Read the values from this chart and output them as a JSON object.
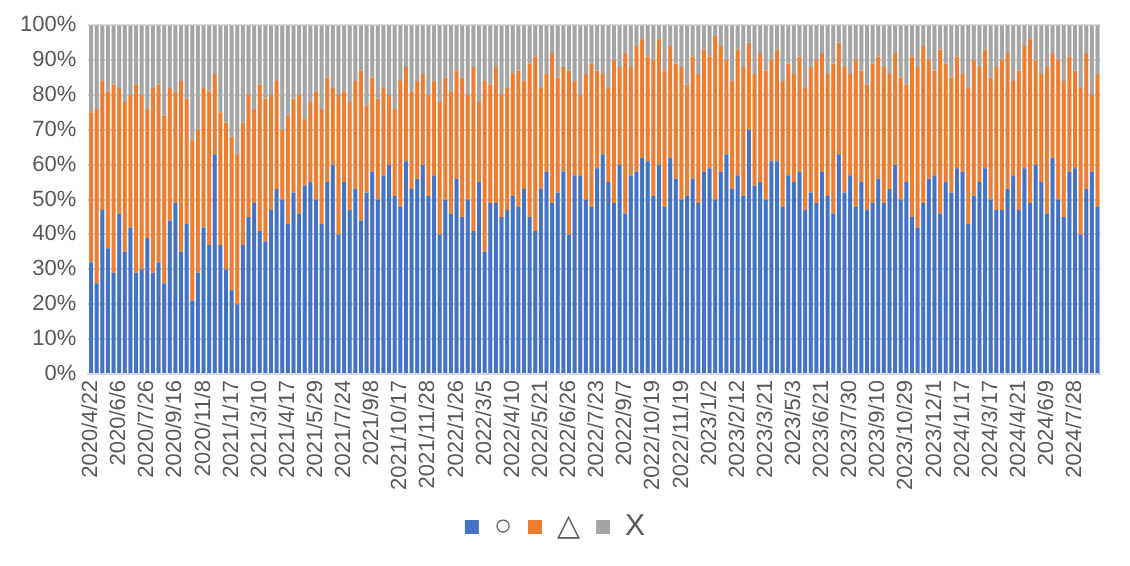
{
  "chart_data": {
    "type": "bar",
    "stacked": true,
    "categories": [
      "2020/4/22",
      null,
      null,
      null,
      null,
      "2020/6/6",
      null,
      null,
      null,
      null,
      "2020/7/26",
      null,
      null,
      null,
      null,
      "2020/9/16",
      null,
      null,
      null,
      null,
      "2020/11/8",
      null,
      null,
      null,
      null,
      "2021/1/17",
      null,
      null,
      null,
      null,
      "2021/3/10",
      null,
      null,
      null,
      null,
      "2021/4/17",
      null,
      null,
      null,
      null,
      "2021/5/29",
      null,
      null,
      null,
      null,
      "2021/7/24",
      null,
      null,
      null,
      null,
      "2021/9/8",
      null,
      null,
      null,
      null,
      "2021/10/17",
      null,
      null,
      null,
      null,
      "2021/11/28",
      null,
      null,
      null,
      null,
      "2022/1/26",
      null,
      null,
      null,
      null,
      "2022/3/5",
      null,
      null,
      null,
      null,
      "2022/4/10",
      null,
      null,
      null,
      null,
      "2022/5/21",
      null,
      null,
      null,
      null,
      "2022/6/26",
      null,
      null,
      null,
      null,
      "2022/7/23",
      null,
      null,
      null,
      null,
      "2022/9/7",
      null,
      null,
      null,
      null,
      "2022/10/19",
      null,
      null,
      null,
      null,
      "2022/11/19",
      null,
      null,
      null,
      null,
      "2023/1/2",
      null,
      null,
      null,
      null,
      "2023/2/12",
      null,
      null,
      null,
      null,
      "2023/3/21",
      null,
      null,
      null,
      null,
      "2023/5/3",
      null,
      null,
      null,
      null,
      "2023/6/21",
      null,
      null,
      null,
      null,
      "2023/7/30",
      null,
      null,
      null,
      null,
      "2023/9/10",
      null,
      null,
      null,
      null,
      "2023/10/29",
      null,
      null,
      null,
      null,
      "2023/12/1",
      null,
      null,
      null,
      null,
      "2024/1/17",
      null,
      null,
      null,
      null,
      "2024/3/17",
      null,
      null,
      null,
      null,
      "2024/4/21",
      null,
      null,
      null,
      null,
      "2024/6/9",
      null,
      null,
      null,
      null,
      "2024/7/28",
      null,
      null,
      null,
      null
    ],
    "series": [
      {
        "name": "○",
        "color": "#4472c4",
        "values": [
          32,
          26,
          47,
          36,
          29,
          46,
          35,
          42,
          29,
          30,
          39,
          29,
          32,
          26,
          44,
          49,
          35,
          43,
          21,
          29,
          42,
          37,
          63,
          37,
          30,
          24,
          20,
          37,
          45,
          49,
          41,
          38,
          47,
          53,
          50,
          43,
          52,
          46,
          54,
          55,
          50,
          43,
          55,
          60,
          40,
          55,
          47,
          53,
          44,
          52,
          58,
          50,
          57,
          60,
          51,
          48,
          61,
          53,
          56,
          60,
          51,
          57,
          40,
          50,
          46,
          56,
          45,
          50,
          41,
          55,
          35,
          49,
          49,
          45,
          47,
          51,
          48,
          53,
          45,
          41,
          53,
          58,
          49,
          52,
          58,
          40,
          57,
          57,
          50,
          48,
          59,
          63,
          55,
          49,
          60,
          46,
          57,
          58,
          62,
          61,
          51,
          60,
          48,
          62,
          56,
          50,
          51,
          56,
          49,
          58,
          59,
          50,
          58,
          63,
          53,
          57,
          51,
          70,
          54,
          55,
          50,
          61,
          61,
          48,
          57,
          55,
          58,
          47,
          52,
          49,
          58,
          51,
          46,
          63,
          52,
          57,
          48,
          55,
          47,
          49,
          56,
          49,
          53,
          60,
          50,
          55,
          45,
          42,
          49,
          56,
          57,
          46,
          55,
          52,
          59,
          58,
          43,
          51,
          55,
          59,
          50,
          47,
          47,
          53,
          57,
          47,
          59,
          49,
          60,
          55,
          46,
          62,
          50,
          45,
          58,
          59,
          40,
          53,
          58,
          48
        ]
      },
      {
        "name": "△",
        "color": "#ed7d31",
        "values": [
          43,
          50,
          37,
          45,
          54,
          36,
          43,
          38,
          54,
          50,
          37,
          53,
          51,
          48,
          38,
          32,
          49,
          36,
          46,
          41,
          40,
          44,
          23,
          38,
          42,
          44,
          43,
          35,
          35,
          27,
          42,
          41,
          33,
          31,
          20,
          31,
          27,
          34,
          19,
          23,
          31,
          33,
          30,
          22,
          40,
          26,
          31,
          31,
          43,
          25,
          27,
          29,
          25,
          20,
          25,
          36,
          27,
          28,
          28,
          26,
          29,
          27,
          38,
          35,
          35,
          31,
          40,
          30,
          47,
          23,
          49,
          34,
          39,
          35,
          35,
          35,
          39,
          31,
          44,
          50,
          29,
          28,
          43,
          33,
          30,
          47,
          27,
          23,
          36,
          41,
          28,
          23,
          27,
          41,
          28,
          46,
          31,
          36,
          34,
          30,
          39,
          36,
          39,
          32,
          33,
          38,
          32,
          35,
          37,
          35,
          32,
          47,
          36,
          27,
          31,
          36,
          37,
          25,
          32,
          37,
          37,
          29,
          32,
          36,
          32,
          31,
          33,
          35,
          36,
          41,
          34,
          35,
          43,
          32,
          36,
          29,
          42,
          32,
          36,
          40,
          35,
          39,
          33,
          32,
          35,
          28,
          46,
          46,
          45,
          34,
          30,
          47,
          34,
          33,
          32,
          28,
          39,
          39,
          33,
          34,
          35,
          41,
          43,
          39,
          27,
          40,
          35,
          47,
          30,
          31,
          42,
          30,
          40,
          39,
          33,
          28,
          42,
          39,
          22,
          38
        ]
      },
      {
        "name": "X",
        "color": "#a5a5a5",
        "values": [
          25,
          24,
          16,
          19,
          17,
          18,
          22,
          20,
          17,
          20,
          24,
          18,
          17,
          26,
          18,
          19,
          16,
          21,
          33,
          30,
          18,
          19,
          14,
          25,
          28,
          32,
          37,
          28,
          20,
          24,
          17,
          21,
          20,
          16,
          30,
          26,
          21,
          20,
          27,
          22,
          19,
          24,
          15,
          18,
          20,
          19,
          22,
          16,
          13,
          23,
          15,
          21,
          18,
          20,
          24,
          16,
          12,
          19,
          16,
          14,
          20,
          16,
          22,
          15,
          19,
          13,
          15,
          20,
          12,
          22,
          16,
          17,
          12,
          20,
          18,
          14,
          13,
          16,
          11,
          9,
          18,
          14,
          8,
          15,
          12,
          13,
          16,
          20,
          14,
          11,
          13,
          14,
          18,
          10,
          12,
          8,
          12,
          6,
          4,
          9,
          10,
          4,
          13,
          6,
          11,
          12,
          17,
          9,
          14,
          7,
          9,
          3,
          6,
          10,
          16,
          7,
          12,
          5,
          14,
          8,
          13,
          10,
          7,
          16,
          11,
          14,
          9,
          18,
          12,
          10,
          8,
          14,
          11,
          5,
          12,
          14,
          10,
          13,
          17,
          11,
          9,
          12,
          14,
          8,
          15,
          17,
          9,
          12,
          6,
          10,
          13,
          7,
          11,
          15,
          9,
          14,
          18,
          10,
          12,
          7,
          15,
          12,
          10,
          8,
          16,
          13,
          6,
          4,
          10,
          14,
          12,
          8,
          10,
          16,
          9,
          13,
          18,
          8,
          20,
          14
        ]
      }
    ],
    "ylim": [
      0,
      100
    ],
    "yticks": [
      {
        "value": 0,
        "label": "0%"
      },
      {
        "value": 10,
        "label": "10%"
      },
      {
        "value": 20,
        "label": "20%"
      },
      {
        "value": 30,
        "label": "30%"
      },
      {
        "value": 40,
        "label": "40%"
      },
      {
        "value": 50,
        "label": "50%"
      },
      {
        "value": 60,
        "label": "60%"
      },
      {
        "value": 70,
        "label": "70%"
      },
      {
        "value": 80,
        "label": "80%"
      },
      {
        "value": 90,
        "label": "90%"
      },
      {
        "value": 100,
        "label": "100%"
      }
    ],
    "grid": "y",
    "legend": "bottom"
  }
}
